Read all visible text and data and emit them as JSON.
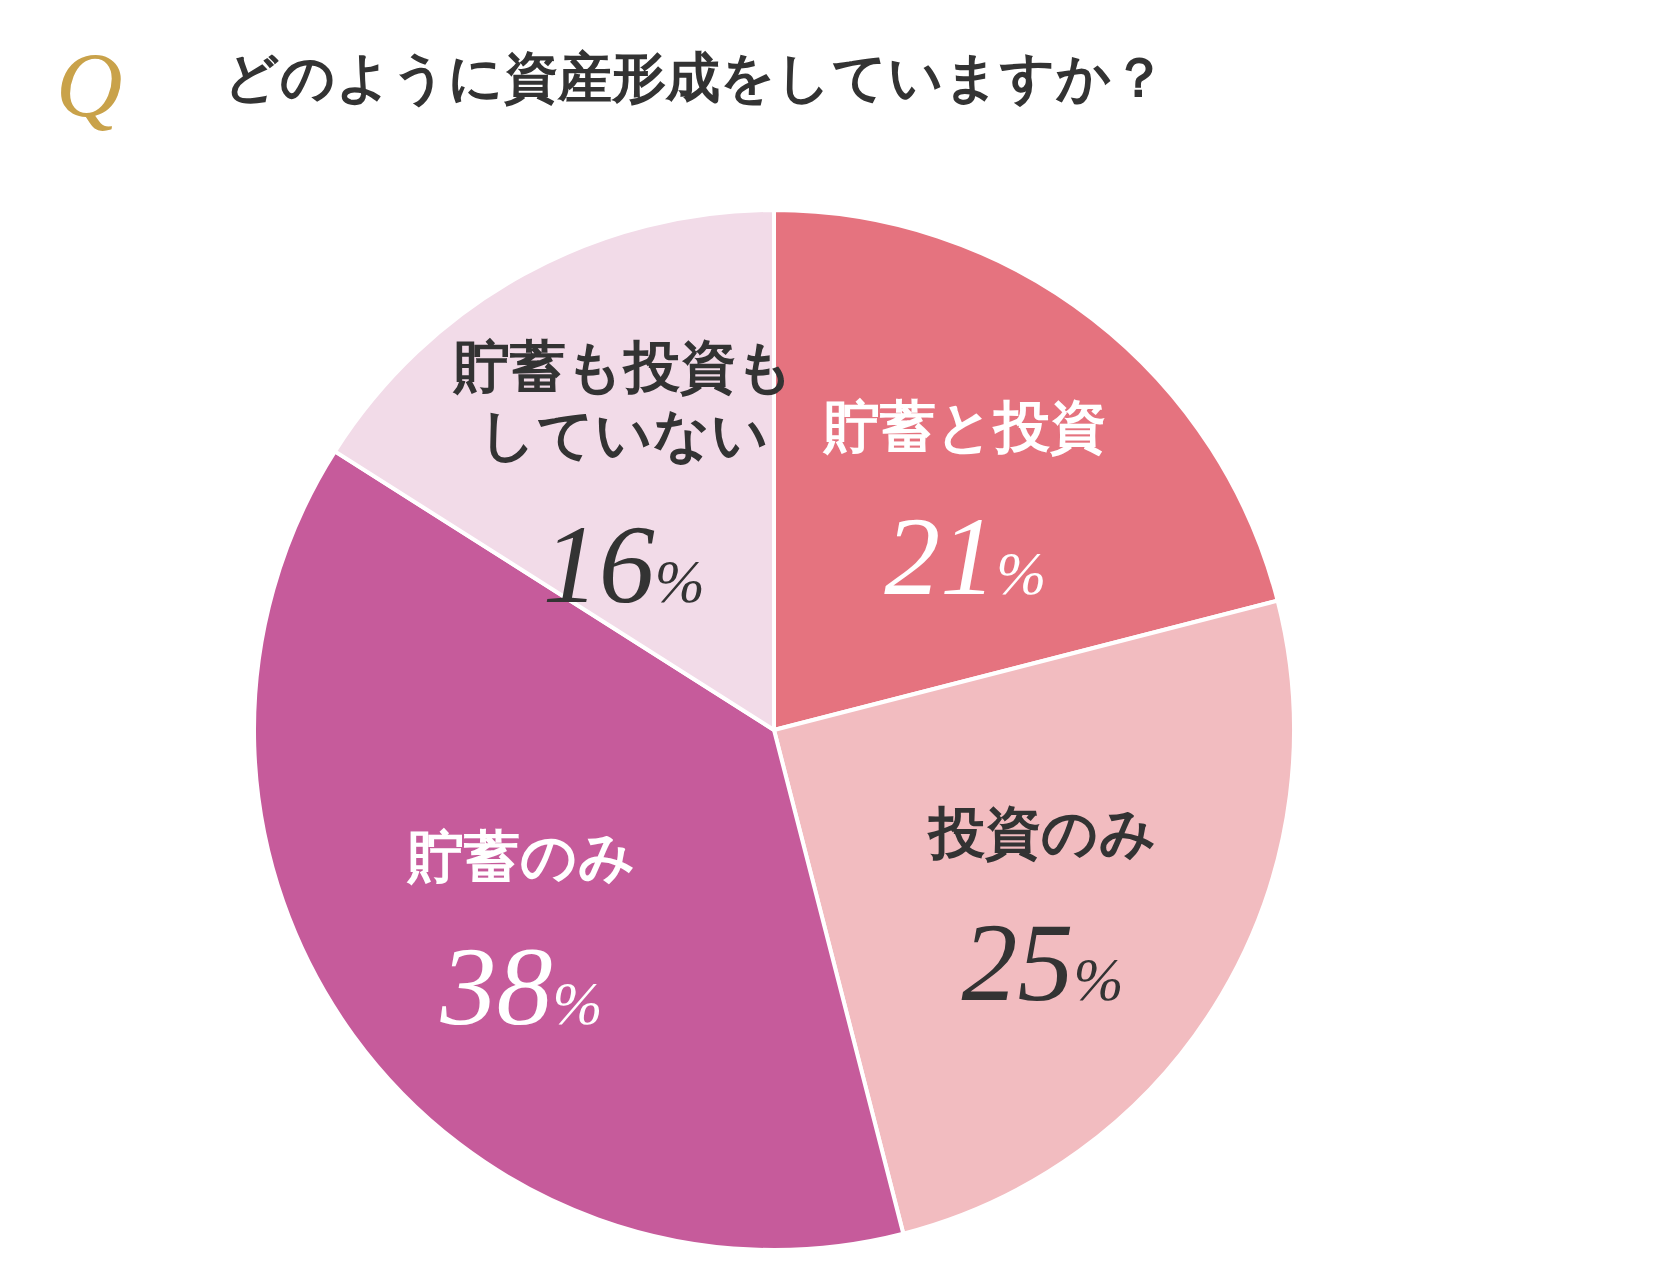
{
  "chart_data": {
    "type": "pie",
    "title": "どのように資産形成をしていますか？",
    "annotations": [
      "Q"
    ],
    "categories": [
      "貯蓄と投資",
      "投資のみ",
      "貯蓄のみ",
      "貯蓄も投資もしていない"
    ],
    "values": [
      21,
      25,
      38,
      16
    ],
    "colors": [
      "#e5737f",
      "#f2bcc0",
      "#c65b9b",
      "#f2dbe8"
    ],
    "value_labels": [
      "21%",
      "25%",
      "38%",
      "16%"
    ]
  }
}
